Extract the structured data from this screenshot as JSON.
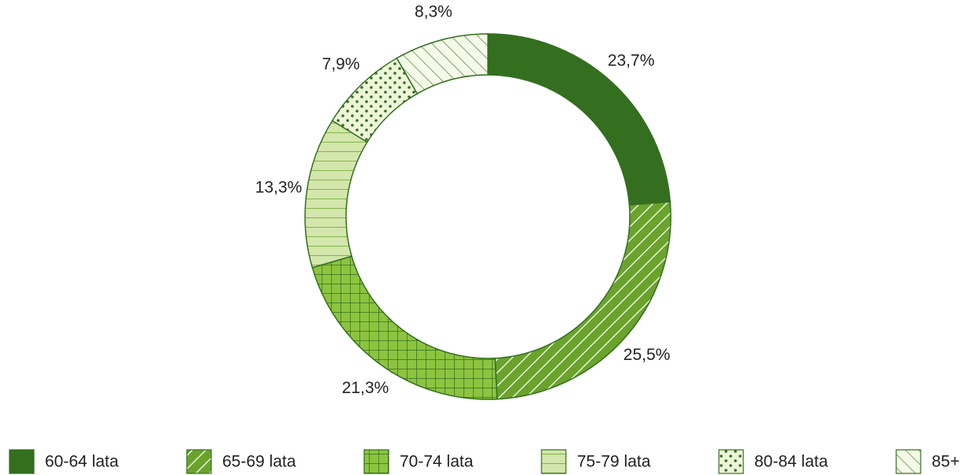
{
  "chart_data": {
    "type": "donut",
    "categories": [
      "60-64 lata",
      "65-69 lata",
      "70-74 lata",
      "75-79 lata",
      "80-84 lata",
      "85+"
    ],
    "values": [
      23.7,
      25.5,
      21.3,
      13.3,
      7.9,
      8.3
    ],
    "value_labels": [
      "23,7%",
      "25,5%",
      "21,3%",
      "13,3%",
      "7,9%",
      "8,3%"
    ],
    "colors": [
      "#336f1f",
      "#6aa32c",
      "#8dc43f",
      "#d3e6ab",
      "#eef5da",
      "#f5f9e8"
    ]
  }
}
